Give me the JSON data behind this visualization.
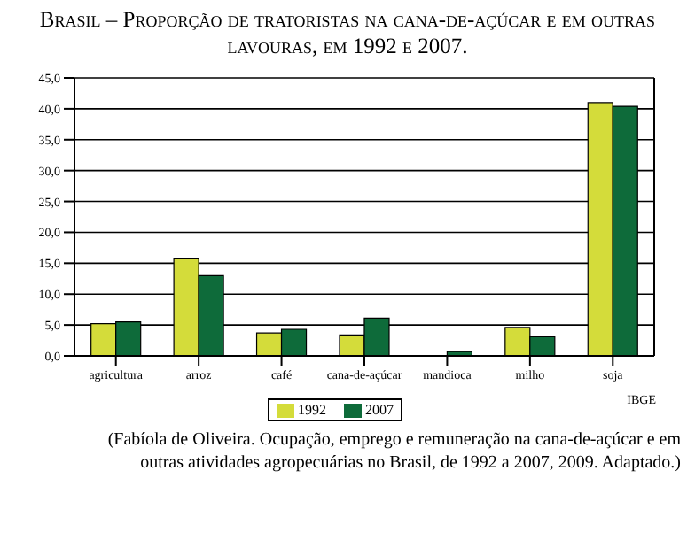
{
  "chart_data": {
    "type": "bar",
    "title": "Brasil – Proporção de tratoristas na cana-de-açúcar e em outras lavouras, em 1992 e 2007.",
    "categories": [
      "agricultura",
      "arroz",
      "café",
      "cana-de-açúcar",
      "mandioca",
      "milho",
      "soja"
    ],
    "series": [
      {
        "name": "1992",
        "color": "#d4dc3a",
        "values": [
          5.2,
          15.7,
          3.7,
          3.4,
          0,
          4.6,
          41.0
        ]
      },
      {
        "name": "2007",
        "color": "#0e6b3a",
        "values": [
          5.5,
          13.0,
          4.3,
          6.1,
          0.7,
          3.1,
          40.4
        ]
      }
    ],
    "ylim": [
      0,
      45
    ],
    "yticks": [
      {
        "value": 0,
        "label": "0,0"
      },
      {
        "value": 5,
        "label": "5,0"
      },
      {
        "value": 10,
        "label": "10,0"
      },
      {
        "value": 15,
        "label": "15,0"
      },
      {
        "value": 20,
        "label": "20,0"
      },
      {
        "value": 25,
        "label": "25,0"
      },
      {
        "value": 30,
        "label": "30,0"
      },
      {
        "value": 35,
        "label": "35,0"
      },
      {
        "value": 40,
        "label": "40,0"
      },
      {
        "value": 45,
        "label": "45,0"
      }
    ],
    "grid": "y",
    "legend": "bottom",
    "annotations": [
      "IBGE",
      "(Fabíola de Oliveira. Ocupação, emprego e remuneração na cana-de-açúcar e em outras atividades agropecuárias no Brasil, de 1992 a 2007, 2009. Adaptado.)"
    ]
  }
}
